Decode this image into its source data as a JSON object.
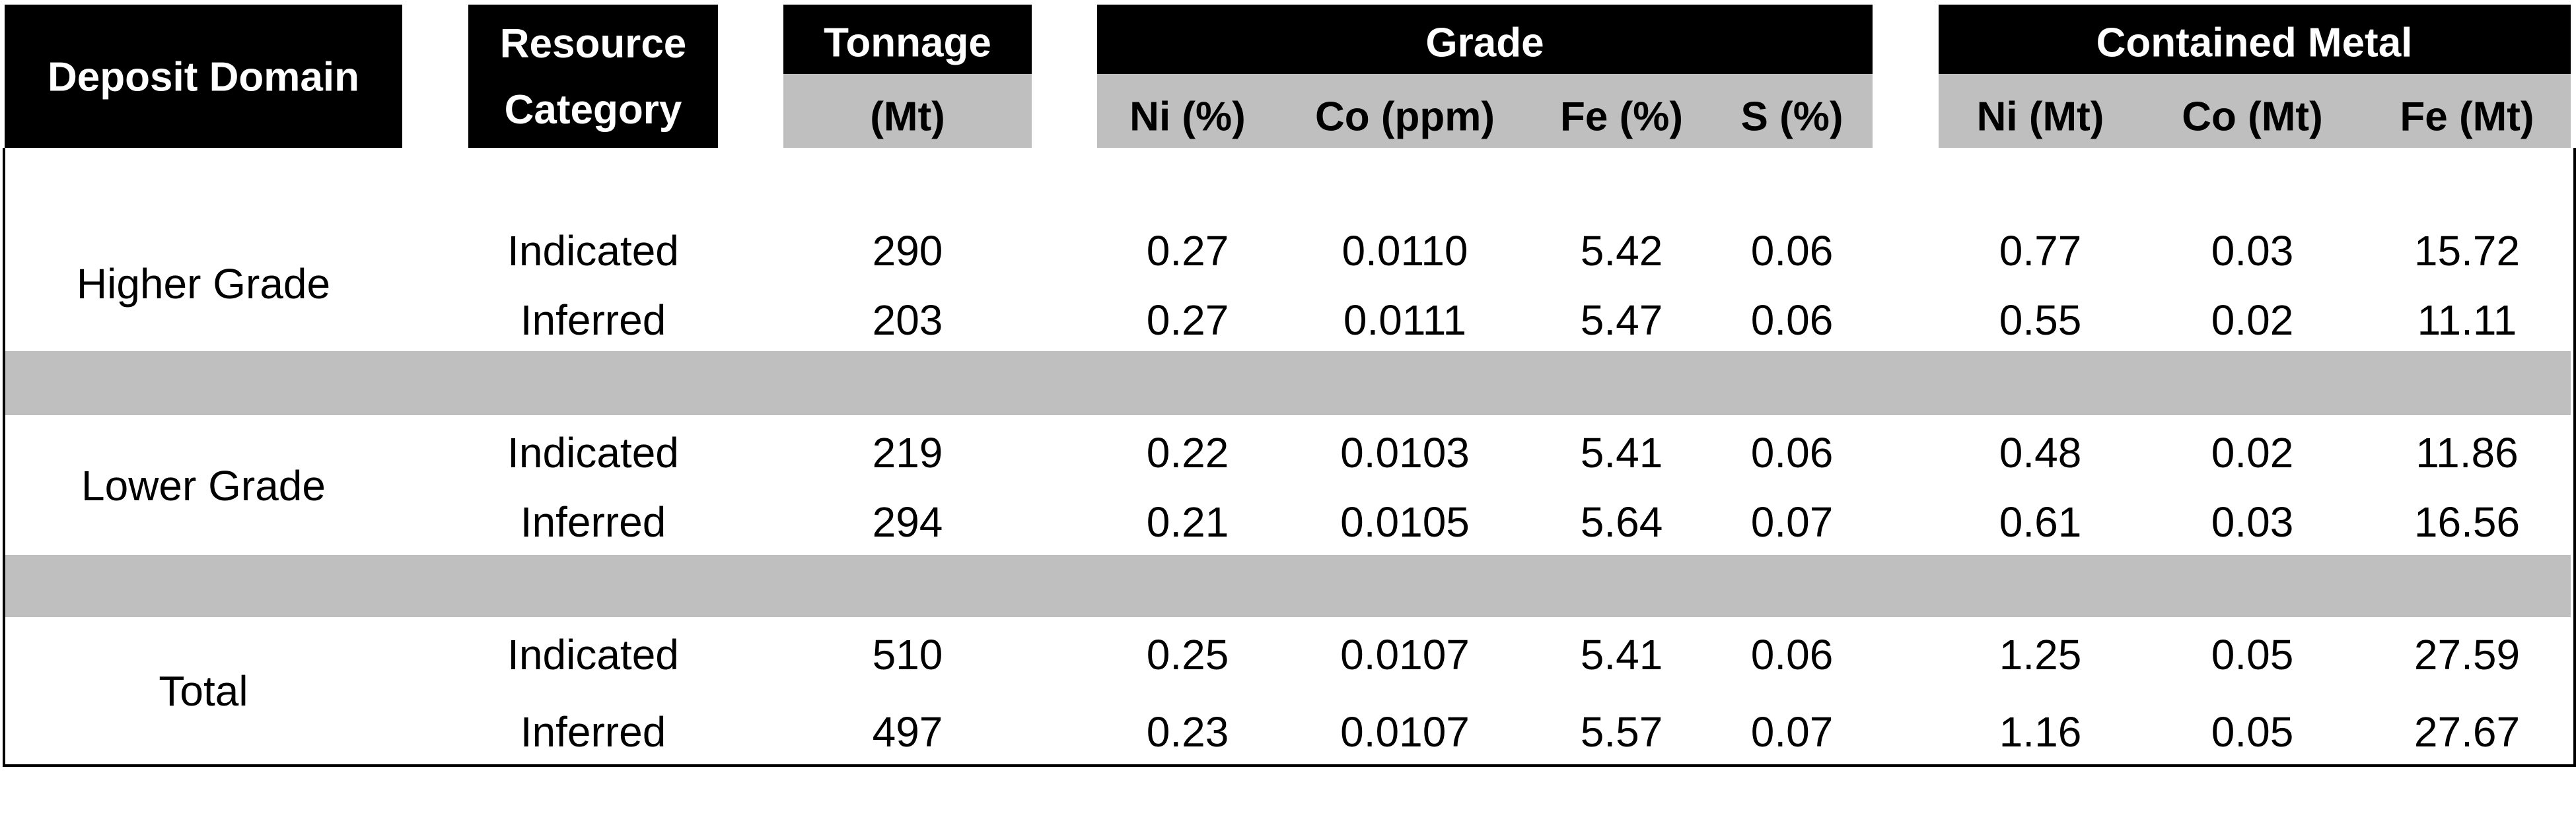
{
  "table": {
    "header": {
      "deposit_domain": "Deposit Domain",
      "resource_category": "Resource Category",
      "tonnage": {
        "title": "Tonnage",
        "unit": "(Mt)"
      },
      "grade": {
        "title": "Grade",
        "columns": [
          "Ni (%)",
          "Co (ppm)",
          "Fe (%)",
          "S (%)"
        ]
      },
      "contained_metal": {
        "title": "Contained Metal",
        "columns": [
          "Ni (Mt)",
          "Co (Mt)",
          "Fe (Mt)"
        ]
      }
    },
    "groups": [
      {
        "domain": "Higher Grade",
        "rows": [
          [
            "Indicated",
            "290",
            "0.27",
            "0.0110",
            "5.42",
            "0.06",
            "0.77",
            "0.03",
            "15.72"
          ],
          [
            "Inferred",
            "203",
            "0.27",
            "0.0111",
            "5.47",
            "0.06",
            "0.55",
            "0.02",
            "11.11"
          ]
        ]
      },
      {
        "domain": "Lower Grade",
        "rows": [
          [
            "Indicated",
            "219",
            "0.22",
            "0.0103",
            "5.41",
            "0.06",
            "0.48",
            "0.02",
            "11.86"
          ],
          [
            "Inferred",
            "294",
            "0.21",
            "0.0105",
            "5.64",
            "0.07",
            "0.61",
            "0.03",
            "16.56"
          ]
        ]
      },
      {
        "domain": "Total",
        "rows": [
          [
            "Indicated",
            "510",
            "0.25",
            "0.0107",
            "5.41",
            "0.06",
            "1.25",
            "0.05",
            "27.59"
          ],
          [
            "Inferred",
            "497",
            "0.23",
            "0.0107",
            "5.57",
            "0.07",
            "1.16",
            "0.05",
            "27.67"
          ]
        ]
      }
    ]
  }
}
